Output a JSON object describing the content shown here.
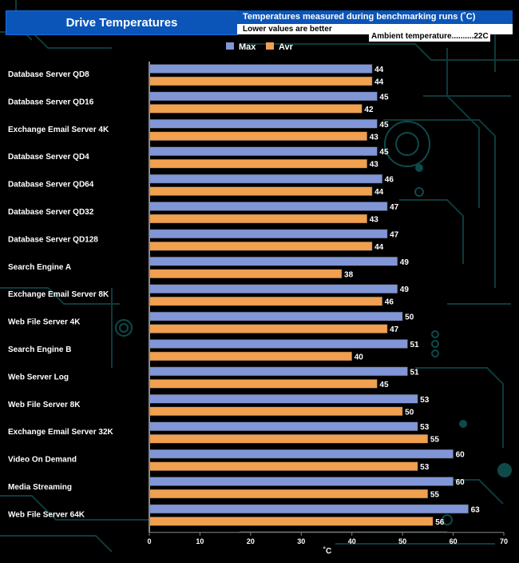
{
  "header": {
    "title": "Drive Temperatures",
    "subtitle": "Temperatures measured during benchmarking runs (˚C)",
    "note": "Lower values are better",
    "ambient": "Ambient  temperature..........22C"
  },
  "colors": {
    "max": "#8096d6",
    "avr": "#f0a04f",
    "background": "#000000",
    "title_bg": "#0b55b8",
    "circuit": "#0c3b3b"
  },
  "chart_data": {
    "type": "bar",
    "orientation": "horizontal",
    "categories": [
      "Database Server QD8",
      "Database Server QD16",
      "Exchange Email Server 4K",
      "Database Server QD4",
      "Database Server QD64",
      "Database Server QD32",
      "Database Server QD128",
      "Search Engine A",
      "Exchange Email Server 8K",
      "Web File Server 4K",
      "Search Engine B",
      "Web Server Log",
      "Web File Server 8K",
      "Exchange Email Server 32K",
      "Video On Demand",
      "Media Streaming",
      "Web File Server 64K"
    ],
    "series": [
      {
        "name": "Max",
        "values": [
          44,
          45,
          45,
          45,
          46,
          47,
          47,
          49,
          49,
          50,
          51,
          51,
          53,
          53,
          60,
          60,
          63
        ]
      },
      {
        "name": "Avr",
        "values": [
          44,
          42,
          43,
          43,
          44,
          43,
          44,
          38,
          46,
          47,
          40,
          45,
          50,
          55,
          53,
          55,
          56
        ]
      }
    ],
    "xlabel": "˚C",
    "xlim": [
      0,
      70
    ],
    "xticks": [
      0,
      10,
      20,
      30,
      40,
      50,
      60,
      70
    ],
    "legend": "top-center",
    "grid": false
  }
}
